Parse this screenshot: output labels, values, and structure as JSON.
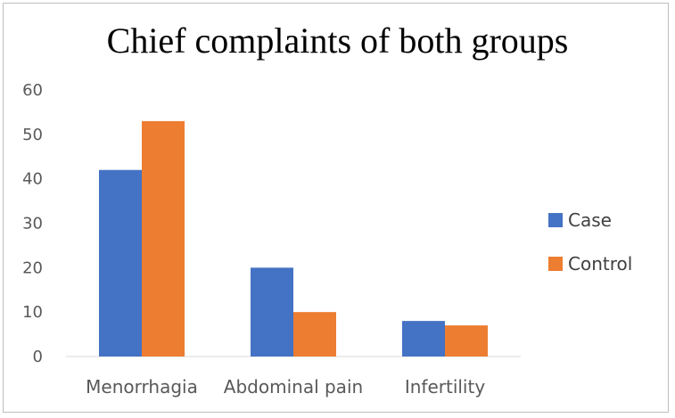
{
  "chart_data": {
    "type": "bar",
    "title": "Chief complaints of both groups",
    "categories": [
      "Menorrhagia",
      "Abdominal pain",
      "Infertility"
    ],
    "series": [
      {
        "name": "Case",
        "values": [
          42,
          20,
          8
        ],
        "color": "#4472C4"
      },
      {
        "name": "Control",
        "values": [
          53,
          10,
          7
        ],
        "color": "#ED7D31"
      }
    ],
    "ylim": [
      0,
      60
    ],
    "yticks": [
      0,
      10,
      20,
      30,
      40,
      50,
      60
    ],
    "grid": false,
    "legend_position": "right",
    "xlabel": "",
    "ylabel": ""
  }
}
